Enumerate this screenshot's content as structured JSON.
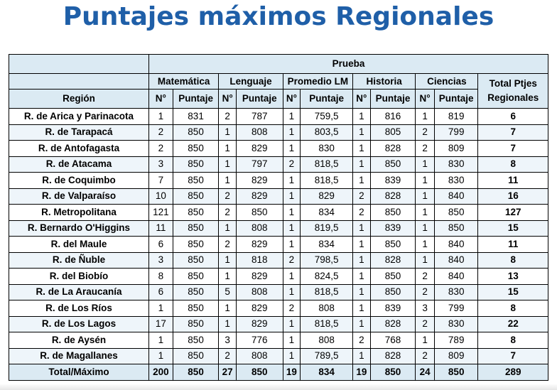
{
  "title": "Puntajes máximos Regionales",
  "table": {
    "group_header": "Prueba",
    "subjects": [
      "Matemática",
      "Lenguaje",
      "Promedio LM",
      "Historia",
      "Ciencias"
    ],
    "total_header": "Total Ptjes Regionales",
    "region_header": "Región",
    "n_label": "N°",
    "score_label": "Puntaje",
    "rows": [
      {
        "region": "R. de Arica y Parinacota",
        "cells": [
          "1",
          "831",
          "2",
          "787",
          "1",
          "759,5",
          "1",
          "816",
          "1",
          "819"
        ],
        "total": "6"
      },
      {
        "region": "R. de Tarapacá",
        "cells": [
          "2",
          "850",
          "1",
          "808",
          "1",
          "803,5",
          "1",
          "805",
          "2",
          "799"
        ],
        "total": "7"
      },
      {
        "region": "R. de Antofagasta",
        "cells": [
          "2",
          "850",
          "1",
          "829",
          "1",
          "830",
          "1",
          "828",
          "2",
          "809"
        ],
        "total": "7"
      },
      {
        "region": "R. de Atacama",
        "cells": [
          "3",
          "850",
          "1",
          "797",
          "2",
          "818,5",
          "1",
          "850",
          "1",
          "830"
        ],
        "total": "8"
      },
      {
        "region": "R. de Coquimbo",
        "cells": [
          "7",
          "850",
          "1",
          "829",
          "1",
          "818,5",
          "1",
          "839",
          "1",
          "830"
        ],
        "total": "11"
      },
      {
        "region": "R. de Valparaíso",
        "cells": [
          "10",
          "850",
          "2",
          "829",
          "1",
          "829",
          "2",
          "828",
          "1",
          "840"
        ],
        "total": "16"
      },
      {
        "region": "R. Metropolitana",
        "cells": [
          "121",
          "850",
          "2",
          "850",
          "1",
          "834",
          "2",
          "850",
          "1",
          "850"
        ],
        "total": "127"
      },
      {
        "region": "R. Bernardo O'Higgins",
        "cells": [
          "11",
          "850",
          "1",
          "808",
          "1",
          "819,5",
          "1",
          "839",
          "1",
          "850"
        ],
        "total": "15"
      },
      {
        "region": "R. del Maule",
        "cells": [
          "6",
          "850",
          "2",
          "829",
          "1",
          "834",
          "1",
          "850",
          "1",
          "840"
        ],
        "total": "11"
      },
      {
        "region": "R. de Ñuble",
        "cells": [
          "3",
          "850",
          "1",
          "818",
          "2",
          "798,5",
          "1",
          "828",
          "1",
          "840"
        ],
        "total": "8"
      },
      {
        "region": "R. del Biobío",
        "cells": [
          "8",
          "850",
          "1",
          "829",
          "1",
          "824,5",
          "1",
          "850",
          "2",
          "840"
        ],
        "total": "13"
      },
      {
        "region": "R. de La Araucanía",
        "cells": [
          "6",
          "850",
          "5",
          "808",
          "1",
          "818,5",
          "1",
          "850",
          "2",
          "830"
        ],
        "total": "15"
      },
      {
        "region": "R. de Los Ríos",
        "cells": [
          "1",
          "850",
          "1",
          "829",
          "2",
          "808",
          "1",
          "839",
          "3",
          "799"
        ],
        "total": "8"
      },
      {
        "region": "R. de Los Lagos",
        "cells": [
          "17",
          "850",
          "1",
          "829",
          "1",
          "818,5",
          "1",
          "828",
          "2",
          "830"
        ],
        "total": "22"
      },
      {
        "region": "R. de Aysén",
        "cells": [
          "1",
          "850",
          "3",
          "776",
          "1",
          "808",
          "2",
          "768",
          "1",
          "789"
        ],
        "total": "8"
      },
      {
        "region": "R. de Magallanes",
        "cells": [
          "1",
          "850",
          "2",
          "808",
          "1",
          "789,5",
          "1",
          "828",
          "2",
          "809"
        ],
        "total": "7"
      }
    ],
    "footer": {
      "label": "Total/Máximo",
      "cells": [
        "200",
        "850",
        "27",
        "850",
        "19",
        "834",
        "19",
        "850",
        "24",
        "850"
      ],
      "total": "289"
    }
  }
}
